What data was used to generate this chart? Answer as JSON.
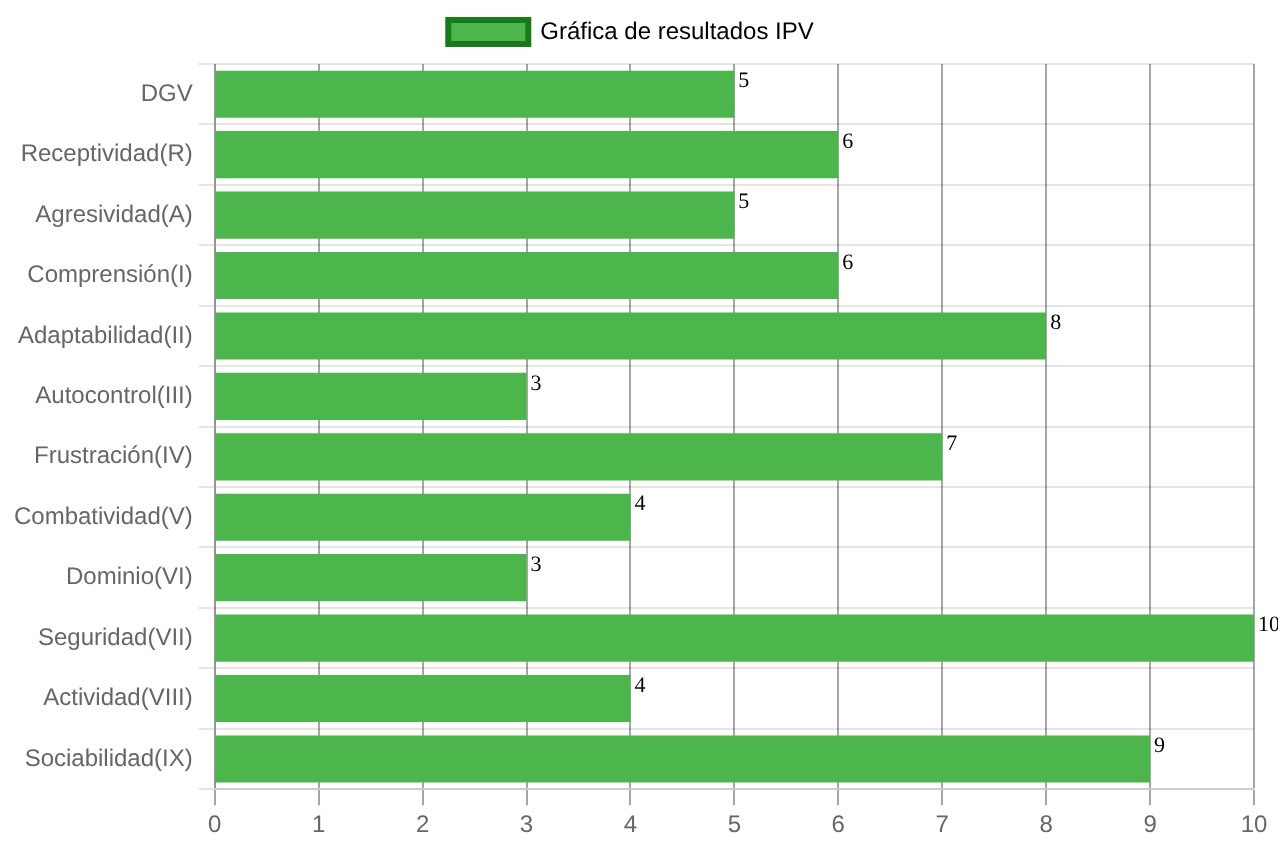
{
  "chart_data": {
    "type": "bar",
    "orientation": "horizontal",
    "categories": [
      "DGV",
      "Receptividad(R)",
      "Agresividad(A)",
      "Comprensión(I)",
      "Adaptabilidad(II)",
      "Autocontrol(III)",
      "Frustración(IV)",
      "Combatividad(V)",
      "Dominio(VI)",
      "Seguridad(VII)",
      "Actividad(VIII)",
      "Sociabilidad(IX)"
    ],
    "series": [
      {
        "name": "Gráfica de resultados IPV",
        "color": "#4cb54c",
        "values": [
          5,
          6,
          5,
          6,
          8,
          3,
          7,
          4,
          3,
          10,
          4,
          9
        ]
      }
    ],
    "xlim": [
      0,
      10
    ],
    "xticks": [
      0,
      1,
      2,
      3,
      4,
      5,
      6,
      7,
      8,
      9,
      10
    ],
    "grid": true,
    "legend": "top",
    "data_labels": true
  }
}
